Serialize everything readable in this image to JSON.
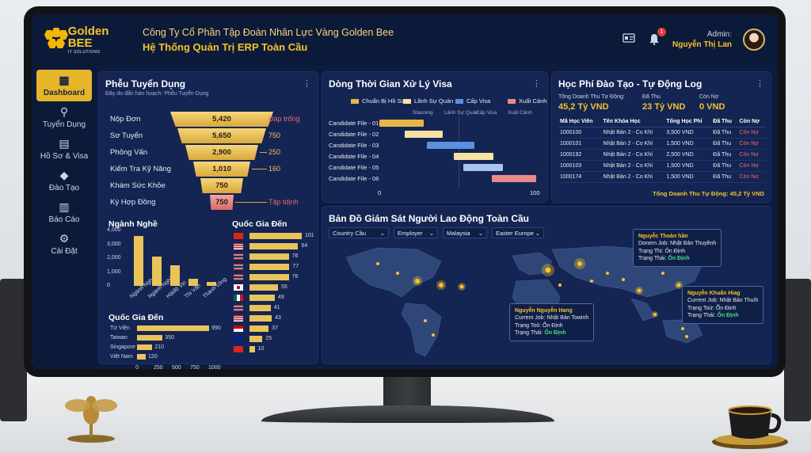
{
  "header": {
    "logo_name": "Golden BEE",
    "logo_sub": "IT SOLUTIONS",
    "company": "Công Ty Cổ Phần Tập Đoàn Nhân Lực Vàng Golden Bee",
    "system": "Hệ Thống Quản Trị ERP Toàn Cầu",
    "notif_count": "1",
    "user_role": "Admin:",
    "user_name": "Nguyễn Thị Lan"
  },
  "sidebar": {
    "items": [
      {
        "label": "Dashboard",
        "icon": "grid-icon"
      },
      {
        "label": "Tuyển Dụng",
        "icon": "search-user-icon"
      },
      {
        "label": "Hồ Sơ & Visa",
        "icon": "id-card-icon"
      },
      {
        "label": "Đào Tạo",
        "icon": "graduation-cap-icon"
      },
      {
        "label": "Báo Cáo",
        "icon": "report-icon"
      },
      {
        "label": "Cài Đặt",
        "icon": "gear-icon"
      }
    ]
  },
  "funnel": {
    "title": "Phễu Tuyển Dụng",
    "subtitle": "Đây do đẩn hàn hoạch: Phễu Tuyển Dụng",
    "stages": [
      {
        "label": "Nộp Đơn",
        "value": "5,420",
        "right": "Đáp trống"
      },
      {
        "label": "Sơ Tuyển",
        "value": "5,650",
        "right": "750"
      },
      {
        "label": "Phỏng Vấn",
        "value": "2,900",
        "right": "250"
      },
      {
        "label": "Kiểm Tra Kỹ Năng",
        "value": "1,010",
        "right": "160"
      },
      {
        "label": "Khám Sức Khỏe",
        "value": "750",
        "right": ""
      },
      {
        "label": "Ký Hợp Đồng",
        "value": "750",
        "right": "Tập tdịnh"
      }
    ]
  },
  "industry": {
    "title": "Ngành Nghề",
    "y_ticks": [
      "4,000",
      "3,000",
      "2,000",
      "1,000",
      "0"
    ],
    "categories": [
      "Ngành Ngh",
      "Ngành Nghề",
      "Hàiđộ Vịn",
      "Thi Văn",
      "Thành công"
    ],
    "values": [
      3600,
      2100,
      1500,
      500,
      300
    ]
  },
  "country_bottom": {
    "title": "Quốc Gia Đến",
    "rows": [
      {
        "label": "Từ Viện",
        "value": 990
      },
      {
        "label": "Taiwan",
        "value": 350
      },
      {
        "label": "Singapore",
        "value": 210
      },
      {
        "label": "Việt Nam",
        "value": 120
      }
    ],
    "x_ticks": [
      "0",
      "250",
      "500",
      "750",
      "1000"
    ]
  },
  "country_flags": {
    "title": "Quốc Gia Đến",
    "rows": [
      {
        "flag": "flag-vn-icon",
        "value": 101
      },
      {
        "flag": "flag-us-icon",
        "value": 94
      },
      {
        "flag": "flag-th-icon",
        "value": 76
      },
      {
        "flag": "flag-th-icon",
        "value": 77
      },
      {
        "flag": "flag-th-icon",
        "value": 76
      },
      {
        "flag": "flag-jp-icon",
        "value": 55
      },
      {
        "flag": "flag-mx-icon",
        "value": 49
      },
      {
        "flag": "flag-th-icon",
        "value": 41
      },
      {
        "flag": "flag-us-icon",
        "value": 43
      },
      {
        "flag": "flag-ml-icon",
        "value": 37
      },
      {
        "flag": "flag-nz-icon",
        "value": 25
      },
      {
        "flag": "flag-vn-icon",
        "value": 10
      }
    ]
  },
  "visa": {
    "title": "Dòng Thời Gian Xử Lý Visa",
    "legend": [
      {
        "label": "Chuẩn Bị Hồ Sơ",
        "color": "#e6b54a"
      },
      {
        "label": "Lãnh Sự Quán",
        "color": "#f6e3a4"
      },
      {
        "label": "Cấp Visa",
        "color": "#5b8fe0"
      },
      {
        "label": "Xuất Cảnh",
        "color": "#e88a8a"
      }
    ],
    "phases": [
      "Staoning",
      "Lãnh Sự Quán",
      "Cấp Visa",
      "Xuất Cảnh"
    ],
    "rows": [
      {
        "label": "Candidate File - 01",
        "start": 0,
        "end": 28,
        "color": "#e6b54a"
      },
      {
        "label": "Candidate File - 02",
        "start": 16,
        "end": 40,
        "color": "#f6e3a4"
      },
      {
        "label": "Candidate File - 03",
        "start": 30,
        "end": 60,
        "color": "#5b8fe0"
      },
      {
        "label": "Candidate File - 04",
        "start": 47,
        "end": 72,
        "color": "#f6e3a4"
      },
      {
        "label": "Candidate File - 05",
        "start": 53,
        "end": 78,
        "color": "#a9c4f0"
      },
      {
        "label": "Candidate File - 06",
        "start": 71,
        "end": 99,
        "color": "#e88a8a"
      }
    ],
    "x_ticks": [
      "0",
      "100"
    ]
  },
  "fees": {
    "title": "Học Phí Đào Tạo - Tự Động Log",
    "summary": [
      {
        "label": "Tổng Doanh Thu Tự Động:",
        "value": "45,2 Tỷ VND"
      },
      {
        "label": "Đã Thu",
        "value": "23 Tỷ VND"
      },
      {
        "label": "Còn Nợ",
        "value": "0 VND"
      }
    ],
    "columns": [
      "Mã Học Viên",
      "Tên Khóa Học",
      "Tổng Học Phí",
      "Đã Thu",
      "Còn Nợ"
    ],
    "rows": [
      [
        "1000100",
        "Nhật Bản 2 - Co Khí",
        "3,500 VND",
        "Đã Thu",
        "Còn Nợ"
      ],
      [
        "1000101",
        "Nhật Bản 2 - Co Khí",
        "1,500 VND",
        "Đã Thu",
        "Còn Nợ"
      ],
      [
        "1000192",
        "Nhật Bản 2 - Co Khí",
        "2,500 VND",
        "Đã Thu",
        "Còn Nợ"
      ],
      [
        "1000103",
        "Nhật Bản 2 - Co Khí",
        "1,500 VND",
        "Đã Thu",
        "Còn Nợ"
      ],
      [
        "1000174",
        "Nhật Bản 2 - Co Khí",
        "1,500 VND",
        "Đã Thu",
        "Còn Nợ"
      ]
    ],
    "footer": "Tổng Doanh Thu Tự Động: 45,2 Tỷ VND"
  },
  "map": {
    "title": "Bản Đồ Giám Sát Người Lao Động Toàn Cầu",
    "filters": [
      "Country Cầu",
      "Employer",
      "Malaysia",
      "Easter Europe"
    ],
    "tooltips": [
      {
        "name": "Nguyễc Thoàn hần",
        "l1": "Donern Job: Nhật Bản Thuyềnh",
        "l2": "Trạng Thi: Ôn Định",
        "l3label": "Trạng Thái:",
        "l3": "Ổn Định"
      },
      {
        "name": "Nguyễn Khuẩn Hiag",
        "l1": "Current Job: Nhật Bản Thuíh",
        "l2": "Trạng Toử: Ổn Định",
        "l3label": "Trạng Thái:",
        "l3": "Ổn Định"
      },
      {
        "name": "Nguyễn Nguyễn Hang",
        "l1": "Current Job: Nhật Bản Towinh",
        "l2": "Trạng Toỏ: Ổn Định",
        "l3label": "Trạng Thái:",
        "l3": "Ổn Định"
      }
    ]
  }
}
